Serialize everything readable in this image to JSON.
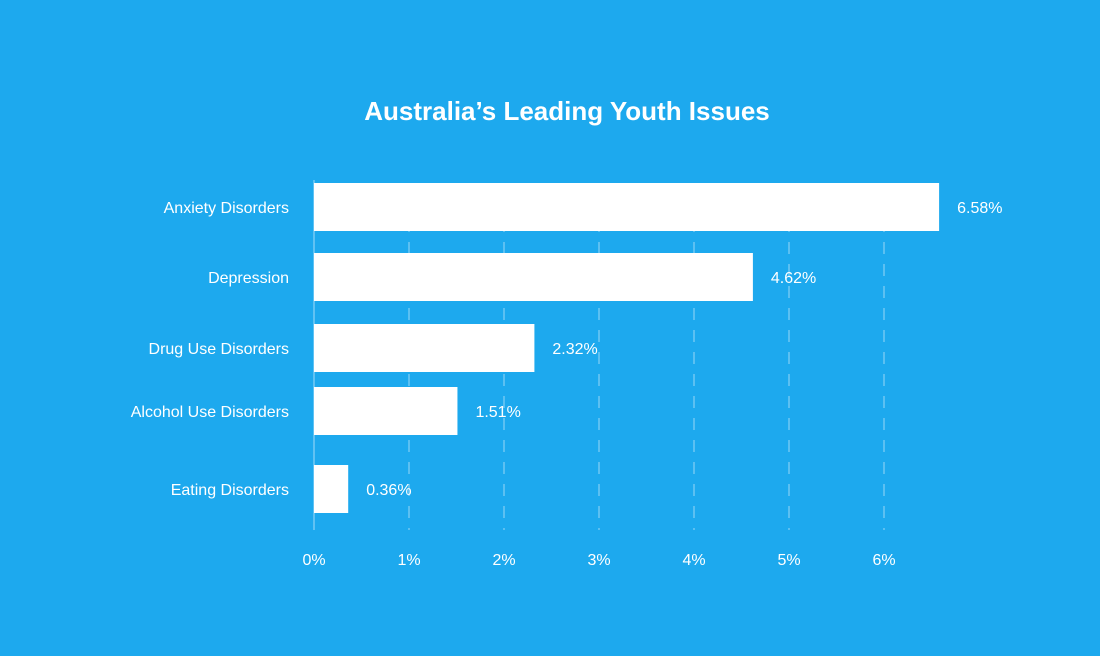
{
  "chart_data": {
    "type": "bar",
    "orientation": "horizontal",
    "title": "Australia’s Leading Youth Issues",
    "categories": [
      "Anxiety Disorders",
      "Depression",
      "Drug Use Disorders",
      "Alcohol Use Disorders",
      "Eating Disorders"
    ],
    "values": [
      6.58,
      4.62,
      2.32,
      1.51,
      0.36
    ],
    "value_labels": [
      "6.58%",
      "4.62%",
      "2.32%",
      "1.51%",
      "0.36%"
    ],
    "xlim": [
      0,
      6
    ],
    "x_ticks": [
      "0%",
      "1%",
      "2%",
      "3%",
      "4%",
      "5%",
      "6%"
    ],
    "grid": true,
    "legend": "none",
    "colors": {
      "background": "#1DA9EE",
      "bar": "#FFFFFF",
      "text": "#FFFFFF"
    }
  }
}
